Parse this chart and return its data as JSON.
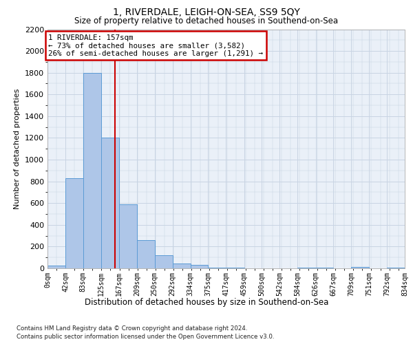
{
  "title": "1, RIVERDALE, LEIGH-ON-SEA, SS9 5QY",
  "subtitle": "Size of property relative to detached houses in Southend-on-Sea",
  "xlabel": "Distribution of detached houses by size in Southend-on-Sea",
  "ylabel": "Number of detached properties",
  "footnote1": "Contains HM Land Registry data © Crown copyright and database right 2024.",
  "footnote2": "Contains public sector information licensed under the Open Government Licence v3.0.",
  "annotation_line1": "1 RIVERDALE: 157sqm",
  "annotation_line2": "← 73% of detached houses are smaller (3,582)",
  "annotation_line3": "26% of semi-detached houses are larger (1,291) →",
  "marker_value": 157,
  "bar_edges": [
    0,
    42,
    83,
    125,
    167,
    209,
    250,
    292,
    334,
    375,
    417,
    459,
    500,
    542,
    584,
    626,
    667,
    709,
    751,
    792,
    834
  ],
  "bar_heights": [
    25,
    830,
    1800,
    1200,
    590,
    260,
    120,
    45,
    30,
    5,
    5,
    0,
    0,
    0,
    5,
    5,
    0,
    15,
    0,
    5
  ],
  "bar_color": "#aec6e8",
  "bar_edgecolor": "#5b9bd5",
  "marker_color": "#cc0000",
  "grid_color": "#c8d4e3",
  "background_color": "#eaf0f8",
  "ylim": [
    0,
    2200
  ],
  "yticks": [
    0,
    200,
    400,
    600,
    800,
    1000,
    1200,
    1400,
    1600,
    1800,
    2000,
    2200
  ]
}
